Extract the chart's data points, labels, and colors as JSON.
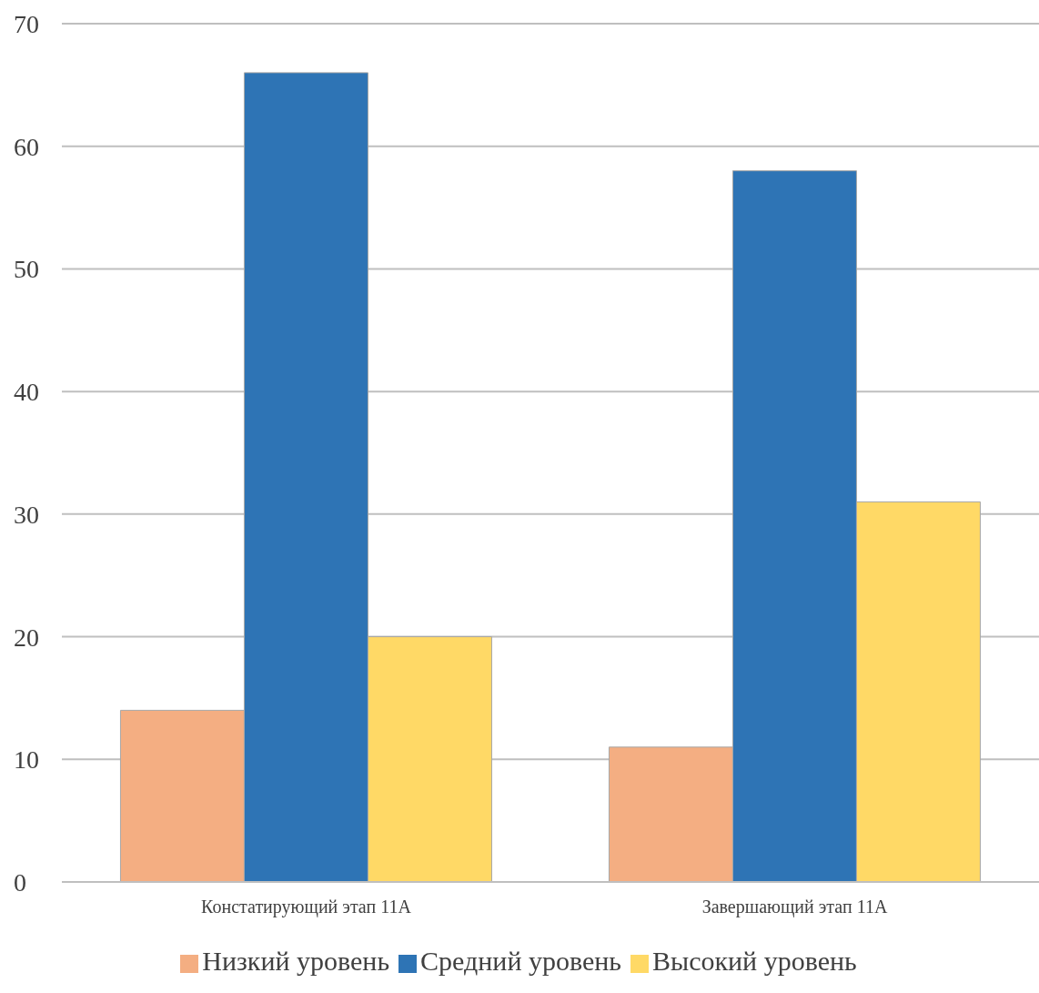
{
  "chart_data": {
    "type": "bar",
    "categories": [
      "Констатирующий этап 11А",
      "Завершающий этап 11А"
    ],
    "series": [
      {
        "name": "Низкий уровень",
        "color": "#f4ae82",
        "values": [
          14,
          11
        ]
      },
      {
        "name": "Средний уровень",
        "color": "#2e74b5",
        "values": [
          66,
          58
        ]
      },
      {
        "name": "Высокий уровень",
        "color": "#ffd966",
        "values": [
          20,
          31
        ]
      }
    ],
    "ylim": [
      0,
      70
    ],
    "yticks": [
      0,
      10,
      20,
      30,
      40,
      50,
      60,
      70
    ],
    "grid": "y",
    "legend": "bottom"
  }
}
